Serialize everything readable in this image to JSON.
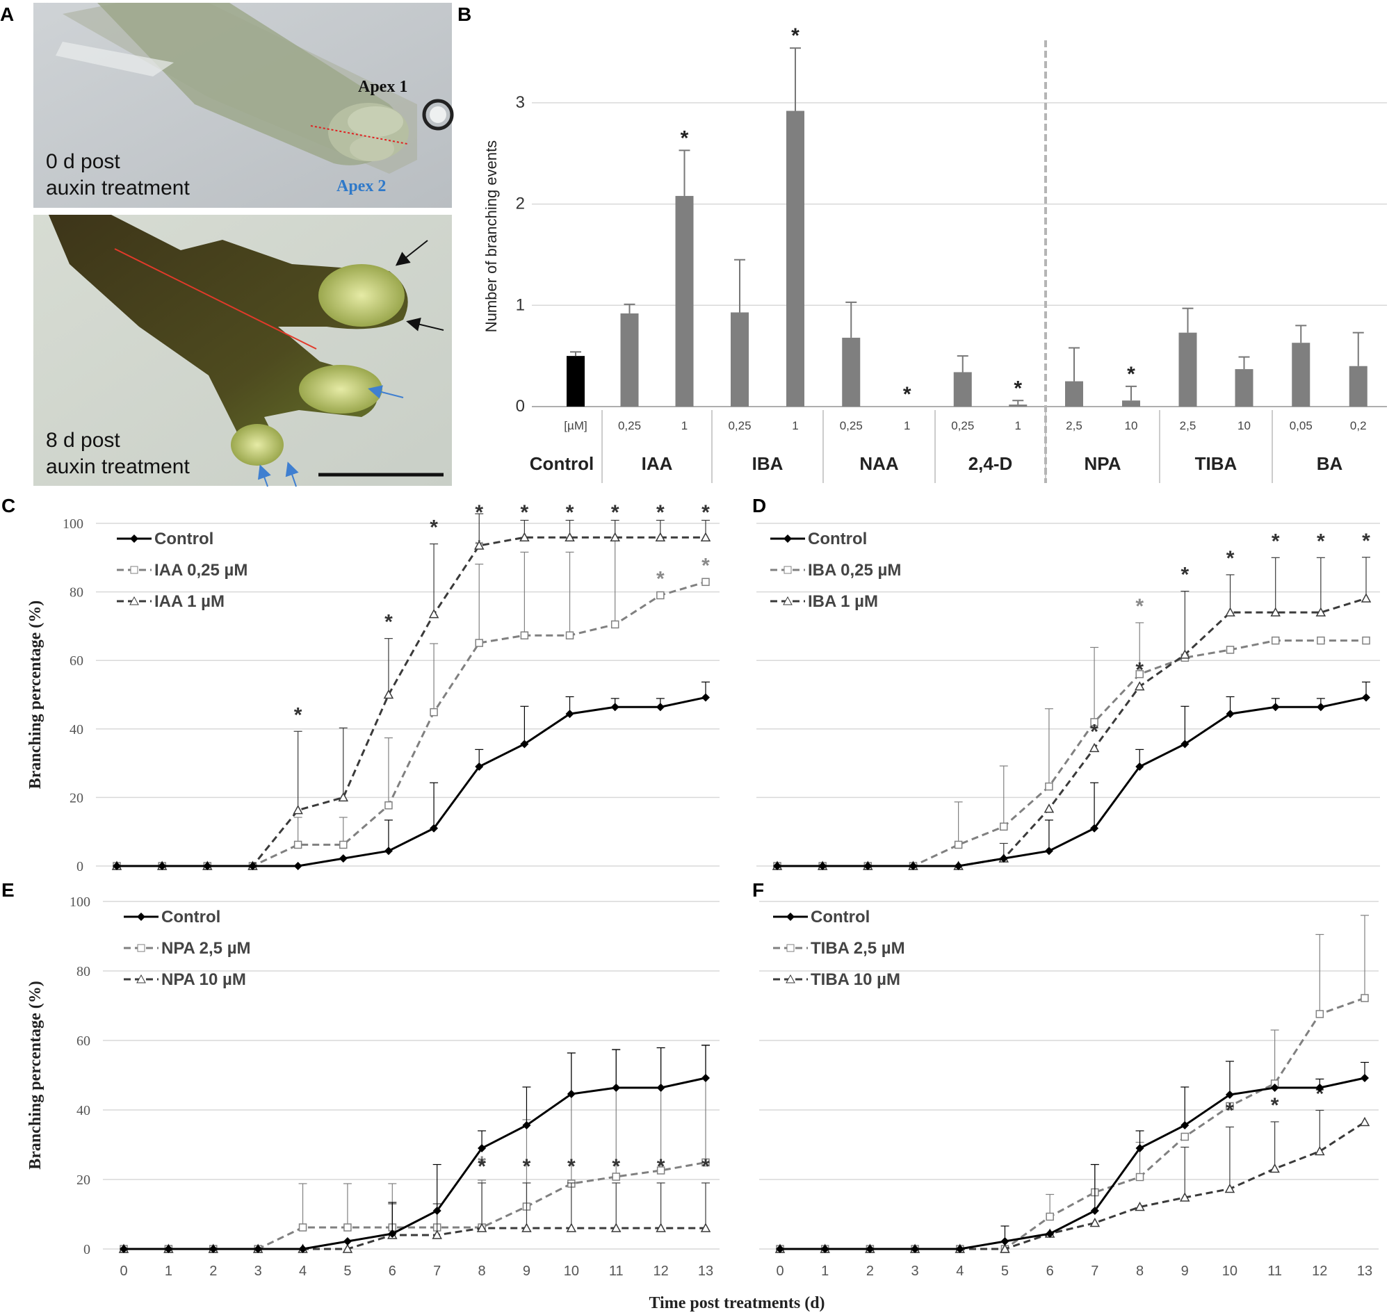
{
  "panel_labels": [
    "A",
    "B",
    "C",
    "D",
    "E",
    "F"
  ],
  "panel_a": {
    "top_caption": [
      "0 d post",
      "auxin treatment"
    ],
    "bottom_caption": [
      "8 d post",
      "auxin treatment"
    ],
    "apex1": "Apex 1",
    "apex2": "Apex 2"
  },
  "chart_data": [
    {
      "id": "B",
      "type": "bar",
      "ylabel": "Number of branching events",
      "ylim": [
        0,
        3.5
      ],
      "yticks": [
        0,
        1,
        2,
        3
      ],
      "unit_label": "[µM]",
      "groups": [
        {
          "name": "Control",
          "bars": [
            {
              "conc": "[µM]",
              "value": 0.5,
              "err": 0.04,
              "sig": false,
              "color": "#000000"
            }
          ]
        },
        {
          "name": "IAA",
          "bars": [
            {
              "conc": "0,25",
              "value": 0.92,
              "err": 0.09,
              "sig": false
            },
            {
              "conc": "1",
              "value": 2.08,
              "err": 0.45,
              "sig": true
            }
          ]
        },
        {
          "name": "IBA",
          "bars": [
            {
              "conc": "0,25",
              "value": 0.93,
              "err": 0.52,
              "sig": false
            },
            {
              "conc": "1",
              "value": 2.92,
              "err": 0.62,
              "sig": true
            }
          ]
        },
        {
          "name": "NAA",
          "bars": [
            {
              "conc": "0,25",
              "value": 0.68,
              "err": 0.35,
              "sig": false
            },
            {
              "conc": "1",
              "value": 0.0,
              "err": 0.0,
              "sig": true
            }
          ]
        },
        {
          "name": "2,4-D",
          "bars": [
            {
              "conc": "0,25",
              "value": 0.34,
              "err": 0.16,
              "sig": false
            },
            {
              "conc": "1",
              "value": 0.02,
              "err": 0.04,
              "sig": true
            }
          ]
        },
        {
          "name": "NPA",
          "bars": [
            {
              "conc": "2,5",
              "value": 0.25,
              "err": 0.33,
              "sig": false
            },
            {
              "conc": "10",
              "value": 0.06,
              "err": 0.14,
              "sig": true
            }
          ]
        },
        {
          "name": "TIBA",
          "bars": [
            {
              "conc": "2,5",
              "value": 0.73,
              "err": 0.24,
              "sig": false
            },
            {
              "conc": "10",
              "value": 0.37,
              "err": 0.12,
              "sig": false
            }
          ]
        },
        {
          "name": "BA",
          "bars": [
            {
              "conc": "0,05",
              "value": 0.63,
              "err": 0.17,
              "sig": false
            },
            {
              "conc": "0,2",
              "value": 0.4,
              "err": 0.33,
              "sig": false
            }
          ]
        }
      ]
    },
    {
      "id": "C",
      "type": "line",
      "ylabel": "Branching percentage (%)",
      "ylim": [
        0,
        100
      ],
      "yticks": [
        0,
        20,
        40,
        60,
        80,
        100
      ],
      "x": [
        0,
        1,
        2,
        3,
        4,
        5,
        6,
        7,
        8,
        9,
        10,
        11,
        12,
        13
      ],
      "series": [
        {
          "name": "Control",
          "style": "control",
          "values": [
            0,
            0,
            0,
            0,
            0,
            2.2,
            4.4,
            11,
            29,
            35.6,
            44.4,
            46.4,
            46.4,
            49.2
          ],
          "err": [
            0,
            0,
            0,
            0,
            0,
            0,
            9,
            13.3,
            5,
            11,
            5,
            2.5,
            2.5,
            4.5
          ]
        },
        {
          "name": "IAA 0,25 µM",
          "style": "low",
          "values": [
            0,
            0,
            0,
            0,
            6.2,
            6.2,
            17.7,
            44.9,
            65.1,
            67.3,
            67.3,
            70.5,
            79,
            82.9
          ],
          "err": [
            0,
            0,
            0,
            0,
            8,
            8,
            19.7,
            20,
            23,
            24.3,
            24.3,
            25.4,
            0,
            0
          ],
          "sig": [
            false,
            false,
            false,
            false,
            false,
            false,
            false,
            false,
            true,
            false,
            false,
            false,
            true,
            true
          ]
        },
        {
          "name": "IAA 1 µM",
          "style": "high",
          "values": [
            0,
            0,
            0,
            0,
            16.3,
            20,
            50,
            73.5,
            93.5,
            95.9,
            95.9,
            95.9,
            95.9,
            95.9
          ],
          "err": [
            0,
            0,
            0,
            0,
            23,
            20.3,
            16.4,
            20.5,
            9.3,
            5,
            5,
            5,
            5,
            5
          ],
          "sig": [
            false,
            false,
            false,
            false,
            true,
            false,
            true,
            true,
            true,
            true,
            true,
            true,
            true,
            true
          ]
        }
      ]
    },
    {
      "id": "D",
      "type": "line",
      "ylabel": "",
      "ylim": [
        0,
        100
      ],
      "yticks": [
        0,
        20,
        40,
        60,
        80,
        100
      ],
      "x": [
        0,
        1,
        2,
        3,
        4,
        5,
        6,
        7,
        8,
        9,
        10,
        11,
        12,
        13
      ],
      "series": [
        {
          "name": "Control",
          "style": "control",
          "values": [
            0,
            0,
            0,
            0,
            0,
            2.2,
            4.4,
            11,
            29,
            35.6,
            44.4,
            46.4,
            46.4,
            49.2
          ],
          "err": [
            0,
            0,
            0,
            0,
            0,
            0,
            9,
            13.3,
            5,
            11,
            5,
            2.5,
            2.5,
            4.5
          ]
        },
        {
          "name": "IBA 0,25 µM",
          "style": "low",
          "values": [
            0,
            0,
            0,
            0,
            6.2,
            11.5,
            23.2,
            42,
            56,
            60.8,
            63.1,
            65.8,
            65.8,
            65.8
          ],
          "err": [
            0,
            0,
            0,
            0,
            12.5,
            17.7,
            22.7,
            21.8,
            15,
            0,
            0,
            0,
            0,
            0
          ],
          "sig": [
            false,
            false,
            false,
            false,
            false,
            false,
            false,
            false,
            true,
            false,
            false,
            false,
            false,
            false
          ]
        },
        {
          "name": "IBA 1 µM",
          "style": "high",
          "values": [
            0,
            0,
            0,
            0,
            0,
            2.2,
            16.7,
            34.4,
            52.4,
            61.7,
            74,
            74,
            74,
            78.1
          ],
          "err": [
            0,
            0,
            0,
            0,
            0,
            4.4,
            0,
            0,
            0,
            18.5,
            11,
            16,
            16,
            12
          ],
          "sig": [
            false,
            false,
            false,
            false,
            false,
            false,
            false,
            true,
            true,
            true,
            true,
            true,
            true,
            true
          ]
        }
      ]
    },
    {
      "id": "E",
      "type": "line",
      "ylabel": "Branching percentage (%)",
      "ylim": [
        0,
        100
      ],
      "yticks": [
        0,
        20,
        40,
        60,
        80,
        100
      ],
      "x": [
        0,
        1,
        2,
        3,
        4,
        5,
        6,
        7,
        8,
        9,
        10,
        11,
        12,
        13
      ],
      "xlabel": "",
      "series": [
        {
          "name": "Control",
          "style": "control",
          "values": [
            0,
            0,
            0,
            0,
            0,
            2.2,
            4.4,
            11,
            29,
            35.6,
            44.6,
            46.4,
            46.4,
            49.2
          ],
          "err": [
            0,
            0,
            0,
            0,
            0,
            0,
            9,
            13.3,
            5,
            11,
            11.8,
            11,
            11.5,
            9.4
          ]
        },
        {
          "name": "NPA 2,5 µM",
          "style": "low",
          "values": [
            0,
            0,
            0,
            0,
            6.2,
            6.2,
            6.2,
            6.2,
            6.2,
            12.2,
            18.8,
            20.8,
            22.6,
            24.9
          ],
          "err": [
            0,
            0,
            0,
            0,
            12.6,
            12.6,
            12.6,
            0,
            13.6,
            25,
            37.6,
            36.5,
            35.3,
            33.8
          ],
          "sig": [
            false,
            false,
            false,
            false,
            false,
            false,
            false,
            false,
            true,
            false,
            false,
            false,
            false,
            false
          ]
        },
        {
          "name": "NPA 10 µM",
          "style": "high",
          "values": [
            0,
            0,
            0,
            0,
            0,
            0,
            4,
            4,
            6,
            6,
            6,
            6,
            6,
            6
          ],
          "err": [
            0,
            0,
            0,
            0,
            0,
            0,
            9,
            9,
            13,
            13,
            13,
            13,
            13,
            13
          ],
          "sig": [
            false,
            false,
            false,
            false,
            false,
            false,
            false,
            false,
            true,
            true,
            true,
            true,
            true,
            true
          ]
        }
      ]
    },
    {
      "id": "F",
      "type": "line",
      "ylabel": "",
      "ylim": [
        0,
        100
      ],
      "yticks": [
        0,
        20,
        40,
        60,
        80,
        100
      ],
      "x": [
        0,
        1,
        2,
        3,
        4,
        5,
        6,
        7,
        8,
        9,
        10,
        11,
        12,
        13
      ],
      "xlabel": "Time post treatments (d)",
      "series": [
        {
          "name": "Control",
          "style": "control",
          "values": [
            0,
            0,
            0,
            0,
            0,
            2.2,
            4.4,
            11,
            29,
            35.6,
            44.4,
            46.4,
            46.4,
            49.2
          ],
          "err": [
            0,
            0,
            0,
            0,
            0,
            4.4,
            0,
            13.3,
            5,
            11,
            9.6,
            0,
            2.5,
            4.5
          ]
        },
        {
          "name": "TIBA 2,5 µM",
          "style": "low",
          "values": [
            0,
            0,
            0,
            0,
            0,
            0,
            9.3,
            16.3,
            20.7,
            32.3,
            41.1,
            47.6,
            67.6,
            72.2
          ],
          "err": [
            0,
            0,
            0,
            0,
            0,
            0,
            6.4,
            8,
            10,
            0,
            0,
            15.4,
            22.9,
            23.8
          ]
        },
        {
          "name": "TIBA 10 µM",
          "style": "high",
          "values": [
            0,
            0,
            0,
            0,
            0,
            0,
            4.4,
            7.5,
            12.1,
            14.8,
            17.3,
            23.1,
            28.1,
            36.5
          ],
          "err": [
            0,
            0,
            0,
            0,
            0,
            0,
            0,
            0,
            0,
            14.5,
            17.8,
            13.5,
            11.8,
            0
          ],
          "sig": [
            false,
            false,
            false,
            false,
            false,
            false,
            false,
            false,
            false,
            false,
            true,
            true,
            true,
            false
          ]
        }
      ]
    }
  ],
  "colors": {
    "control": "#000000",
    "low": "#808080",
    "high": "#3a3a3a",
    "bar": "#7f7f7f",
    "grid": "#d9d9d9"
  }
}
